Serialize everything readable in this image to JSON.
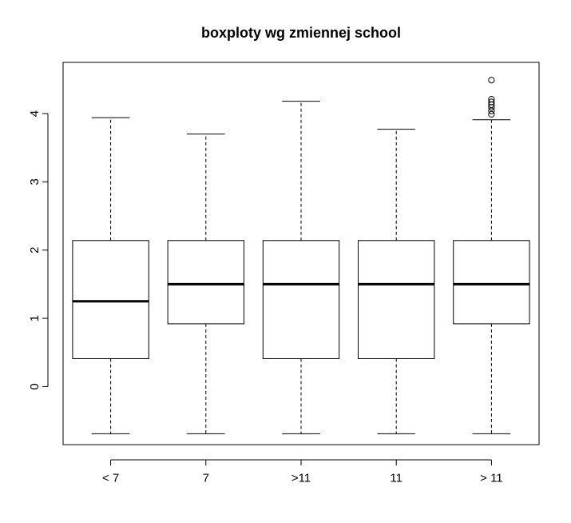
{
  "chart_data": {
    "type": "box",
    "title": "boxploty wg zmiennej school",
    "xlabel": "",
    "ylabel": "",
    "ylim": [
      -0.85,
      4.75
    ],
    "y_ticks": [
      0,
      1,
      2,
      3,
      4
    ],
    "y_tick_labels": [
      "0",
      "1",
      "2",
      "3",
      "4"
    ],
    "categories": [
      "< 7",
      "7",
      ">11",
      "11",
      "> 11"
    ],
    "boxes": [
      {
        "label": "< 7",
        "whisker_low": -0.69,
        "q1": 0.41,
        "median": 1.25,
        "q3": 2.14,
        "whisker_high": 3.94,
        "outliers": []
      },
      {
        "label": "7",
        "whisker_low": -0.69,
        "q1": 0.92,
        "median": 1.5,
        "q3": 2.14,
        "whisker_high": 3.7,
        "outliers": []
      },
      {
        "label": ">11",
        "whisker_low": -0.69,
        "q1": 0.41,
        "median": 1.5,
        "q3": 2.14,
        "whisker_high": 4.18,
        "outliers": []
      },
      {
        "label": "11",
        "whisker_low": -0.69,
        "q1": 0.41,
        "median": 1.5,
        "q3": 2.14,
        "whisker_high": 3.77,
        "outliers": []
      },
      {
        "label": "> 11",
        "whisker_low": -0.69,
        "q1": 0.92,
        "median": 1.5,
        "q3": 2.14,
        "whisker_high": 3.91,
        "outliers": [
          3.99,
          4.04,
          4.09,
          4.13,
          4.17,
          4.21,
          4.49
        ]
      }
    ],
    "grid": false,
    "legend": "none"
  },
  "colors": {
    "box_fill": "#ffffff",
    "stroke": "#000000",
    "background": "#ffffff"
  }
}
